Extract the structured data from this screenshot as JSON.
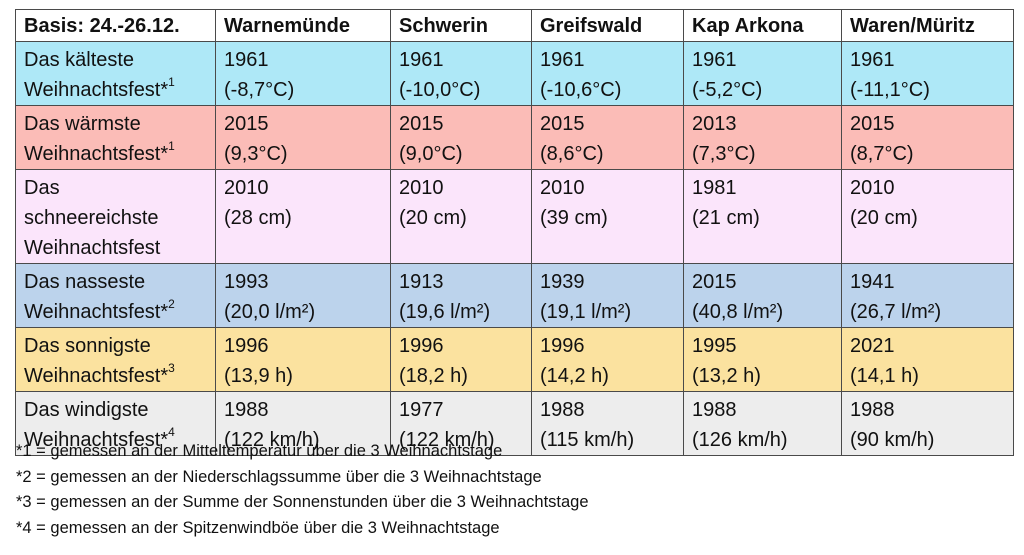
{
  "table": {
    "headers": [
      "Basis: 24.-26.12.",
      "Warnemünde",
      "Schwerin",
      "Greifswald",
      "Kap Arkona",
      "Waren/Müritz"
    ],
    "rows": [
      {
        "color": "#aee8f7",
        "label_lines": [
          "Das kälteste",
          "Weihnachtsfest*"
        ],
        "label_sup": "1",
        "cells": [
          [
            "1961",
            "(-8,7°C)"
          ],
          [
            "1961",
            "(-10,0°C)"
          ],
          [
            "1961",
            "(-10,6°C)"
          ],
          [
            "1961",
            "(-5,2°C)"
          ],
          [
            "1961",
            "(-11,1°C)"
          ]
        ]
      },
      {
        "color": "#fbbcb7",
        "label_lines": [
          "Das wärmste",
          "Weihnachtsfest*"
        ],
        "label_sup": "1",
        "cells": [
          [
            "2015",
            "(9,3°C)"
          ],
          [
            "2015",
            "(9,0°C)"
          ],
          [
            "2015",
            "(8,6°C)"
          ],
          [
            "2013",
            "(7,3°C)"
          ],
          [
            "2015",
            "(8,7°C)"
          ]
        ]
      },
      {
        "color": "#fbe5fb",
        "label_lines": [
          "Das",
          "schneereichste",
          "Weihnachtsfest"
        ],
        "label_sup": "",
        "cells": [
          [
            "2010",
            "(28 cm)"
          ],
          [
            "2010",
            "(20 cm)"
          ],
          [
            "2010",
            "(39 cm)"
          ],
          [
            "1981",
            "(21 cm)"
          ],
          [
            "2010",
            "(20 cm)"
          ]
        ]
      },
      {
        "color": "#bcd3ec",
        "label_lines": [
          "Das nasseste",
          "Weihnachtsfest*"
        ],
        "label_sup": "2",
        "cells": [
          [
            "1993",
            "(20,0 l/m²)"
          ],
          [
            "1913",
            "(19,6 l/m²)"
          ],
          [
            "1939",
            "(19,1 l/m²)"
          ],
          [
            "2015",
            "(40,8 l/m²)"
          ],
          [
            "1941",
            "(26,7 l/m²)"
          ]
        ]
      },
      {
        "color": "#fbe29f",
        "label_lines": [
          "Das sonnigste",
          "Weihnachtsfest*"
        ],
        "label_sup": "3",
        "cells": [
          [
            "1996",
            "(13,9 h)"
          ],
          [
            "1996",
            "(18,2 h)"
          ],
          [
            "1996",
            "(14,2 h)"
          ],
          [
            "1995",
            "(13,2 h)"
          ],
          [
            "2021",
            "(14,1 h)"
          ]
        ]
      },
      {
        "color": "#ededed",
        "label_lines": [
          "Das windigste",
          "Weihnachtsfest*"
        ],
        "label_sup": "4",
        "cells": [
          [
            "1988",
            "(122 km/h)"
          ],
          [
            "1977",
            "(122 km/h)"
          ],
          [
            "1988",
            "(115 km/h)"
          ],
          [
            "1988",
            "(126 km/h)"
          ],
          [
            "1988",
            "(90 km/h)"
          ]
        ]
      }
    ]
  },
  "footnotes": [
    "*1 = gemessen an der Mitteltemperatur über die 3 Weihnachtstage",
    "*2 = gemessen an der Niederschlagssumme über die 3 Weihnachtstage",
    "*3 = gemessen an der Summe der Sonnenstunden über die 3 Weihnachtstage",
    "*4 = gemessen an der Spitzenwindböe über die 3 Weihnachtstage"
  ]
}
